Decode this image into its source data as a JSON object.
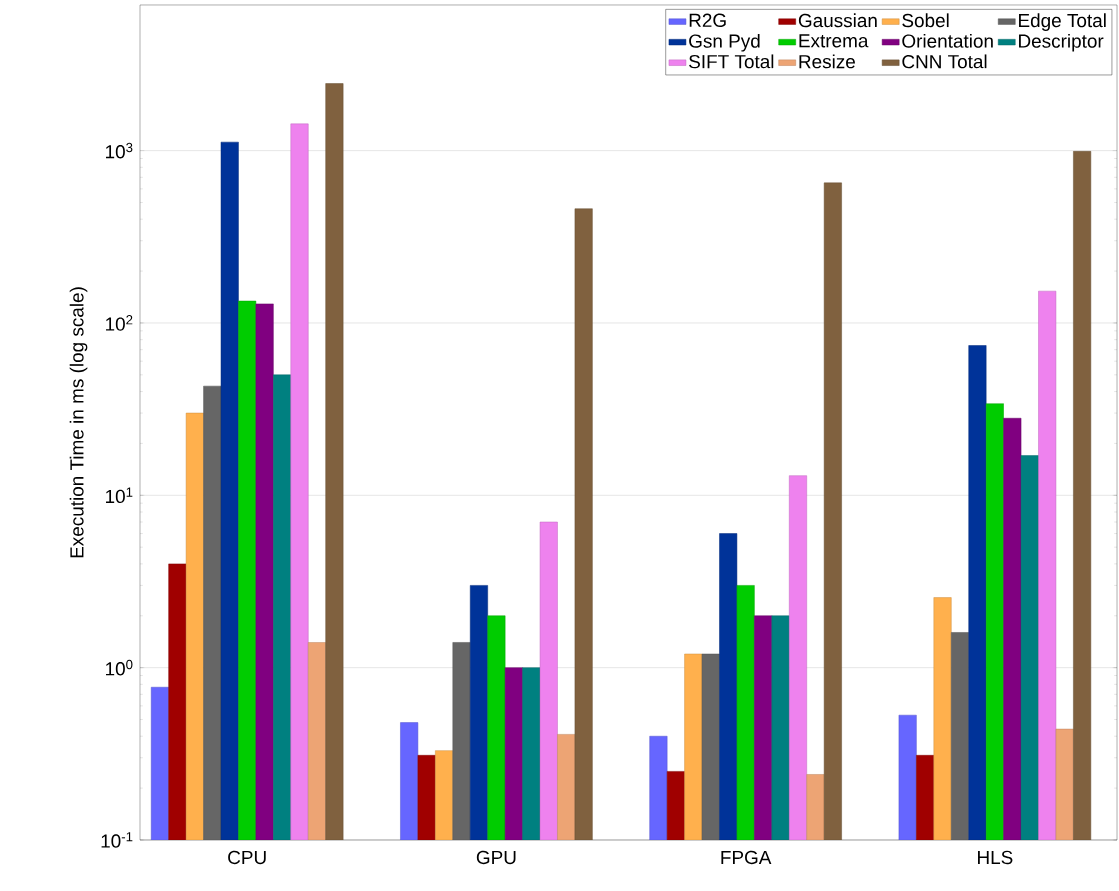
{
  "chart_data": {
    "type": "bar",
    "ylabel": "Execution Time in ms (log scale)",
    "categories": [
      "CPU",
      "GPU",
      "FPGA",
      "HLS"
    ],
    "log": "y",
    "ylim": [
      0.1,
      7000
    ],
    "yticks": [
      {
        "value": 0.1,
        "label": "10$^{-1}$"
      },
      {
        "value": 1,
        "label": "10$^{0}$"
      },
      {
        "value": 10,
        "label": "10$^{1}$"
      },
      {
        "value": 100,
        "label": "10$^{2}$"
      },
      {
        "value": 1000,
        "label": "10$^{3}$"
      }
    ],
    "grid": "y",
    "legend": "top right",
    "series": [
      {
        "name": "R2G",
        "color": "#6666ff",
        "values": [
          0.77,
          0.48,
          0.4,
          0.53
        ]
      },
      {
        "name": "Gaussian",
        "color": "#a00000",
        "values": [
          4.0,
          0.31,
          0.25,
          0.31
        ]
      },
      {
        "name": "Sobel",
        "color": "#ffb04d",
        "values": [
          30,
          0.33,
          1.2,
          2.55
        ]
      },
      {
        "name": "Edge Total",
        "color": "#666666",
        "values": [
          43,
          1.4,
          1.2,
          1.6
        ]
      },
      {
        "name": "Gsn Pyd",
        "color": "#003399",
        "values": [
          1120,
          3.0,
          6.0,
          74
        ]
      },
      {
        "name": "Extrema",
        "color": "#00cc00",
        "values": [
          134,
          2.0,
          3.0,
          34
        ]
      },
      {
        "name": "Orientation",
        "color": "#800080",
        "values": [
          129,
          1.0,
          2.0,
          28
        ]
      },
      {
        "name": "Descriptor",
        "color": "#008080",
        "values": [
          50,
          1.0,
          2.0,
          17
        ]
      },
      {
        "name": "SIFT Total",
        "color": "#ee82ee",
        "values": [
          1430,
          7.0,
          13,
          153
        ]
      },
      {
        "name": "Resize",
        "color": "#eda474",
        "values": [
          1.4,
          0.41,
          0.24,
          0.44
        ]
      },
      {
        "name": "CNN Total",
        "color": "#80613f",
        "values": [
          2450,
          460,
          650,
          990
        ]
      }
    ]
  }
}
